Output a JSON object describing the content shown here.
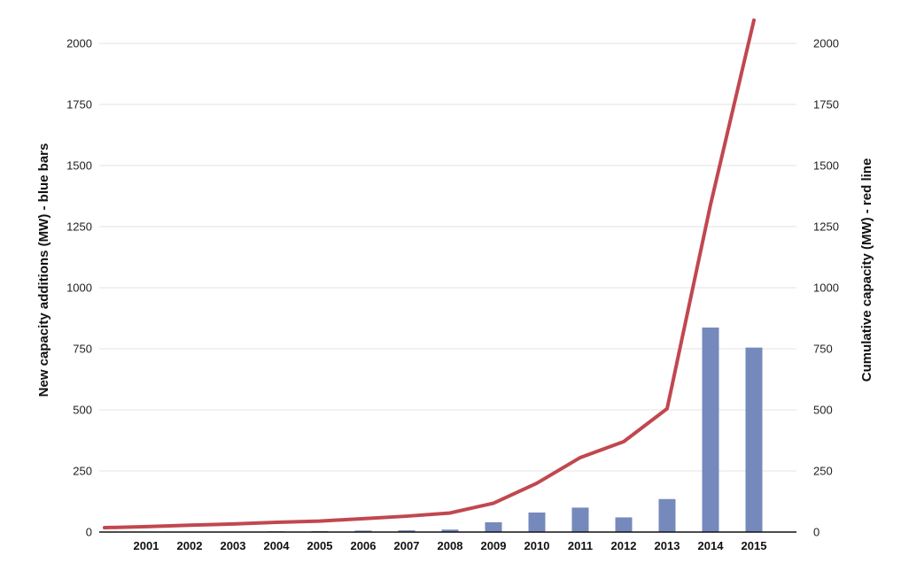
{
  "chart_data": {
    "type": "bar",
    "title": "",
    "categories": [
      "2001",
      "2002",
      "2003",
      "2004",
      "2005",
      "2006",
      "2007",
      "2008",
      "2009",
      "2010",
      "2011",
      "2012",
      "2013",
      "2014",
      "2015"
    ],
    "x_origin_label": "",
    "y_left_label": "New capacity additions (MW) - blue bars",
    "y_right_label": "Cumulative capacity (MW) - red line",
    "y_left_ticks": [
      "0",
      "250",
      "500",
      "750",
      "1000",
      "1250",
      "1500",
      "1750",
      "2000"
    ],
    "y_right_ticks": [
      "0",
      "250",
      "500",
      "750",
      "1000",
      "1250",
      "1500",
      "1750",
      "2000"
    ],
    "ylim": [
      0,
      2150
    ],
    "grid": true,
    "series": [
      {
        "kind": "bar",
        "axis": "left",
        "color": "#7689bc",
        "values": [
          2,
          2,
          2,
          3,
          4,
          6,
          7,
          10,
          40,
          80,
          100,
          60,
          135,
          837,
          755
        ]
      },
      {
        "kind": "line",
        "axis": "right",
        "color": "#c1474f",
        "x": [
          "2000",
          "2001",
          "2002",
          "2003",
          "2004",
          "2005",
          "2006",
          "2007",
          "2008",
          "2009",
          "2010",
          "2011",
          "2012",
          "2013",
          "2014",
          "2015"
        ],
        "values": [
          18,
          22,
          28,
          33,
          40,
          45,
          55,
          65,
          78,
          118,
          200,
          305,
          370,
          505,
          1340,
          2095
        ]
      }
    ]
  }
}
